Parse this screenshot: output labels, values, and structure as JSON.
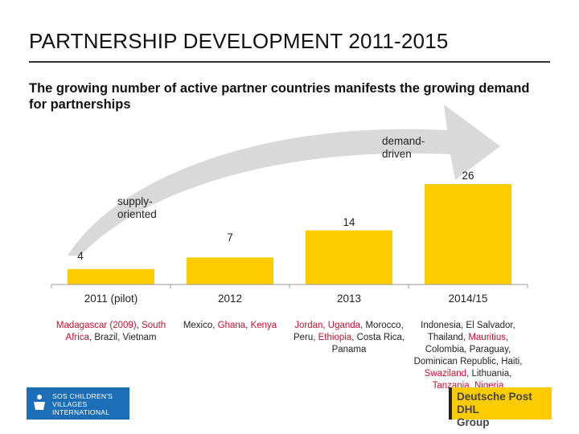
{
  "header": {
    "title": "PARTNERSHIP DEVELOPMENT 2011-2015",
    "subtitle": "The growing number of active partner countries manifests the growing demand for partnerships"
  },
  "arrow": {
    "start_label": "supply-\noriented",
    "end_label": "demand-\ndriven"
  },
  "chart_data": {
    "type": "bar",
    "categories": [
      "2011 (pilot)",
      "2012",
      "2013",
      "2014/15"
    ],
    "values": [
      4,
      7,
      14,
      26
    ],
    "ylim": [
      0,
      26
    ],
    "bar_color": "#ffcc00",
    "grid": false,
    "legend": "none"
  },
  "countries": [
    {
      "parts": [
        {
          "t": "Madagascar (2009)",
          "hl": true
        },
        {
          "t": ", ",
          "hl": false
        },
        {
          "t": "South Africa",
          "hl": true
        },
        {
          "t": ", Brazil, Vietnam",
          "hl": false
        }
      ]
    },
    {
      "parts": [
        {
          "t": "Mexico, ",
          "hl": false
        },
        {
          "t": "Ghana",
          "hl": true
        },
        {
          "t": ", ",
          "hl": false
        },
        {
          "t": "Kenya",
          "hl": true
        }
      ]
    },
    {
      "parts": [
        {
          "t": "Jordan",
          "hl": true
        },
        {
          "t": ", ",
          "hl": false
        },
        {
          "t": "Uganda",
          "hl": true
        },
        {
          "t": ", Morocco, Peru, ",
          "hl": false
        },
        {
          "t": "Ethiopia",
          "hl": true
        },
        {
          "t": ", Costa Rica, Panama",
          "hl": false
        }
      ]
    },
    {
      "parts": [
        {
          "t": "Indonesia, El Salvador, Thailand, ",
          "hl": false
        },
        {
          "t": "Mauritius",
          "hl": true
        },
        {
          "t": ", Colombia, Paraguay, Dominican Republic, Haiti, ",
          "hl": false
        },
        {
          "t": "Swaziland",
          "hl": true
        },
        {
          "t": ", Lithuania, ",
          "hl": false
        },
        {
          "t": "Tanzania",
          "hl": true
        },
        {
          "t": ", ",
          "hl": false
        },
        {
          "t": "Nigeria",
          "hl": true
        }
      ]
    }
  ],
  "colors": {
    "highlight": "#c8102e",
    "arrow": "#d9d9d9",
    "axis": "#999999"
  },
  "logos": {
    "sos": "SOS CHILDREN'S\nVILLAGES\nINTERNATIONAL",
    "dhl": "Deutsche Post DHL\nGroup"
  }
}
